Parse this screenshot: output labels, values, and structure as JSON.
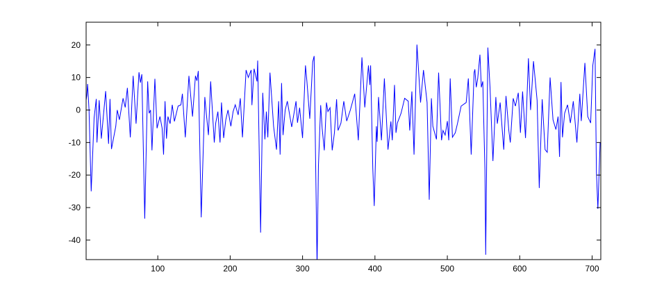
{
  "chart_data": {
    "type": "line",
    "title": "",
    "xlabel": "",
    "ylabel": "",
    "xlim": [
      1,
      712
    ],
    "ylim": [
      -46,
      27
    ],
    "grid": false,
    "line_color": "#0000ff",
    "xticks": [
      100,
      200,
      300,
      400,
      500,
      600,
      700
    ],
    "yticks": [
      -40,
      -30,
      -20,
      -10,
      0,
      10,
      20
    ],
    "xtick_labels": [
      "100",
      "200",
      "300",
      "400",
      "500",
      "600",
      "700"
    ],
    "ytick_labels": [
      "-40",
      "-30",
      "-20",
      "-10",
      "0",
      "10",
      "20"
    ],
    "series": [
      {
        "x": [
          1,
          2,
          3,
          5,
          8,
          10,
          12,
          15,
          16,
          19,
          22,
          28,
          32,
          34,
          36,
          42,
          44,
          47,
          52,
          55,
          58,
          62,
          66,
          70,
          74,
          76,
          78,
          82,
          86,
          88,
          90,
          92,
          96,
          99,
          103,
          106,
          108,
          110,
          112,
          114,
          117,
          120,
          123,
          128,
          132,
          134,
          138,
          143,
          148,
          152,
          154,
          156,
          160,
          165,
          167,
          170,
          173,
          178,
          180,
          183,
          186,
          188,
          191,
          194,
          197,
          201,
          204,
          207,
          211,
          214,
          217,
          222,
          225,
          229,
          230,
          233,
          237,
          238,
          242,
          245,
          248,
          250,
          252,
          255,
          260,
          264,
          267,
          269,
          271,
          273,
          276,
          279,
          285,
          291,
          293,
          296,
          300,
          304,
          306,
          310,
          314,
          316,
          320,
          322,
          325,
          327,
          330,
          333,
          335,
          338,
          341,
          344,
          347,
          349,
          353,
          357,
          361,
          366,
          372,
          377,
          382,
          386,
          391,
          393,
          394,
          397,
          399,
          402,
          403,
          405,
          409,
          413,
          418,
          422,
          424,
          427,
          429,
          431,
          436,
          441,
          446,
          448,
          451,
          454,
          458,
          463,
          467,
          472,
          475,
          478,
          480,
          485,
          488,
          492,
          494,
          497,
          500,
          502,
          504,
          507,
          511,
          514,
          519,
          526,
          529,
          533,
          537,
          538,
          540,
          542,
          545,
          547,
          549,
          552,
          553,
          556,
          559,
          563,
          567,
          569,
          573,
          578,
          581,
          585,
          587,
          591,
          594,
          598,
          601,
          604,
          608,
          612,
          615,
          619,
          624,
          627,
          631,
          635,
          638,
          642,
          646,
          650,
          653,
          655,
          657,
          659,
          662,
          666,
          670,
          674,
          679,
          683,
          685,
          690,
          694,
          698,
          701,
          704,
          706,
          708,
          711
        ],
        "y": [
          3,
          4.5,
          8,
          0,
          -25,
          -13.7,
          -2.4,
          3.4,
          -10,
          3,
          -8.8,
          5.8,
          -10.4,
          3.4,
          -12,
          -5,
          0,
          -3,
          3.6,
          0.8,
          6.8,
          -8.4,
          10.5,
          -4.2,
          11.6,
          8.4,
          11,
          -33.4,
          8.8,
          -1,
          0,
          -12.4,
          9.6,
          -5.6,
          -2,
          -5.6,
          -13.7,
          2.7,
          -8.8,
          -2,
          -4.2,
          1.6,
          -3.5,
          1.2,
          1.6,
          5,
          -8.4,
          10.5,
          -2,
          10.5,
          9,
          12,
          -33,
          4,
          -1,
          -7.7,
          8.8,
          -10,
          -4,
          -0.5,
          -10,
          2.3,
          -8.6,
          -3,
          0,
          -5,
          -0.5,
          1.6,
          -1.5,
          3.6,
          -8.4,
          12.3,
          10,
          12.3,
          1.5,
          12.7,
          8.8,
          15.2,
          -37.7,
          5.3,
          -9,
          -0.5,
          -8.4,
          11.5,
          -5,
          -12.2,
          2.7,
          -13.7,
          8.3,
          -7.7,
          0,
          2.7,
          -5.2,
          2.7,
          -3.9,
          0.7,
          -8.6,
          13.7,
          8.8,
          -2.7,
          14.8,
          16.6,
          -48,
          -17,
          1.5,
          -5.6,
          -12.4,
          2.3,
          -0.5,
          0.7,
          -12.4,
          -7,
          3.3,
          -6.3,
          -4,
          2.7,
          -3.4,
          0,
          5,
          -9.3,
          16.2,
          0.8,
          13.7,
          7.7,
          13.7,
          -17.8,
          -29.5,
          -5,
          -9.8,
          4,
          -9.3,
          9.7,
          -12.2,
          -3.5,
          -9.3,
          7.7,
          -7,
          -4,
          -1,
          3.6,
          2.7,
          -6.3,
          5.7,
          -13.7,
          20.1,
          2.3,
          12.3,
          2.3,
          -27.6,
          3.6,
          -5,
          -9,
          11.5,
          -9.3,
          -6.3,
          -7.7,
          -3.4,
          -9.3,
          9.7,
          -8.4,
          -7,
          -4.2,
          1.2,
          2.3,
          9.7,
          -13.7,
          11.5,
          12.5,
          7,
          9.7,
          17,
          7,
          8.8,
          -18.4,
          -44.5,
          19.2,
          7,
          -15.7,
          4,
          -4.2,
          2.3,
          -12.2,
          4.3,
          -6.3,
          -10,
          3.6,
          1.2,
          5.3,
          -7,
          5.7,
          -8.6,
          15.9,
          0,
          15,
          3,
          -24,
          3.3,
          -12.2,
          -13,
          10,
          -3,
          -6,
          -2,
          -14.4,
          8.6,
          -8.4,
          -1,
          1.6,
          -4,
          2.7,
          -10,
          5,
          -3.4,
          14.5,
          -2,
          -4,
          13.7,
          18.8,
          -19,
          -30.4,
          -10
        ]
      }
    ]
  }
}
